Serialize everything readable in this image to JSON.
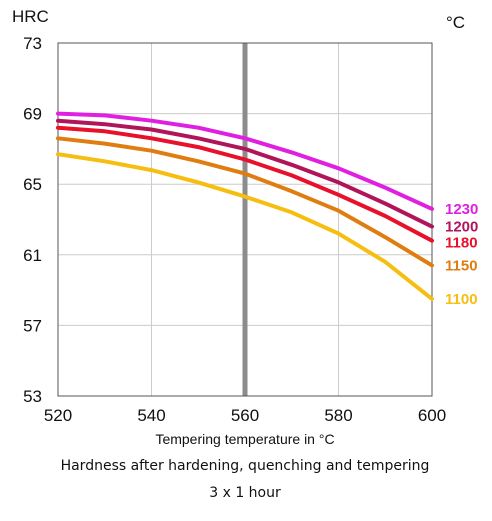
{
  "chart_data": {
    "type": "line",
    "y_unit_label": "HRC",
    "series_unit_label": "°C",
    "xlabel": "Tempering temperature in °C",
    "caption_line1": "Hardness after hardening, quenching and tempering",
    "caption_line2": "3 x 1 hour",
    "xlim": [
      520,
      600
    ],
    "ylim": [
      53,
      73
    ],
    "x_ticks": [
      "520",
      "540",
      "560",
      "580",
      "600"
    ],
    "y_ticks": [
      "73",
      "69",
      "65",
      "61",
      "57",
      "53"
    ],
    "grid": true,
    "highlight_x": 560,
    "x": [
      520,
      530,
      540,
      550,
      560,
      570,
      580,
      590,
      600
    ],
    "series": [
      {
        "name": "1230",
        "color": "#e020e0",
        "values": [
          69.0,
          68.9,
          68.6,
          68.2,
          67.6,
          66.8,
          65.9,
          64.8,
          63.6
        ]
      },
      {
        "name": "1200",
        "color": "#b0155a",
        "values": [
          68.6,
          68.4,
          68.1,
          67.6,
          67.0,
          66.1,
          65.1,
          63.9,
          62.6
        ]
      },
      {
        "name": "1180",
        "color": "#e8102a",
        "values": [
          68.2,
          68.0,
          67.6,
          67.1,
          66.4,
          65.5,
          64.4,
          63.2,
          61.8
        ]
      },
      {
        "name": "1150",
        "color": "#e07d10",
        "values": [
          67.6,
          67.3,
          66.9,
          66.3,
          65.6,
          64.6,
          63.5,
          62.0,
          60.4
        ]
      },
      {
        "name": "1100",
        "color": "#f5be10",
        "values": [
          66.7,
          66.3,
          65.8,
          65.1,
          64.3,
          63.4,
          62.2,
          60.6,
          58.5
        ]
      }
    ]
  }
}
